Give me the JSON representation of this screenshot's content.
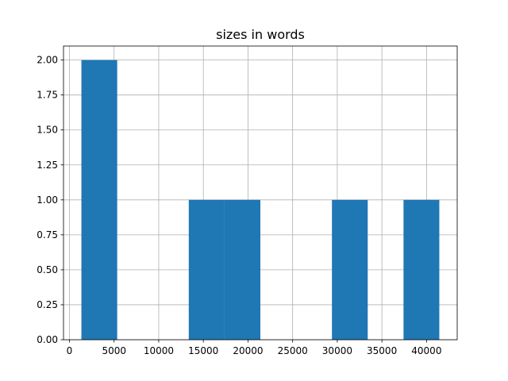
{
  "chart_data": {
    "type": "histogram",
    "title": "sizes in words",
    "bins": [
      1340,
      5349,
      9358,
      13367,
      17376,
      21385,
      25394,
      29403,
      33412,
      37421,
      41430
    ],
    "counts": [
      2,
      0,
      0,
      1,
      1,
      0,
      0,
      1,
      0,
      1
    ],
    "color": "#1f77b4",
    "xlim": [
      -665,
      43434
    ],
    "xticks": [
      0,
      5000,
      10000,
      15000,
      20000,
      25000,
      30000,
      35000,
      40000
    ],
    "ylim": [
      0,
      2.1
    ],
    "yticks": [
      {
        "value": 0,
        "label": "0.00"
      },
      {
        "value": 0.25,
        "label": "0.25"
      },
      {
        "value": 0.5,
        "label": "0.50"
      },
      {
        "value": 0.75,
        "label": "0.75"
      },
      {
        "value": 1,
        "label": "1.00"
      },
      {
        "value": 1.25,
        "label": "1.25"
      },
      {
        "value": 1.5,
        "label": "1.50"
      },
      {
        "value": 1.75,
        "label": "1.75"
      },
      {
        "value": 2,
        "label": "2.00"
      }
    ],
    "grid": true
  }
}
